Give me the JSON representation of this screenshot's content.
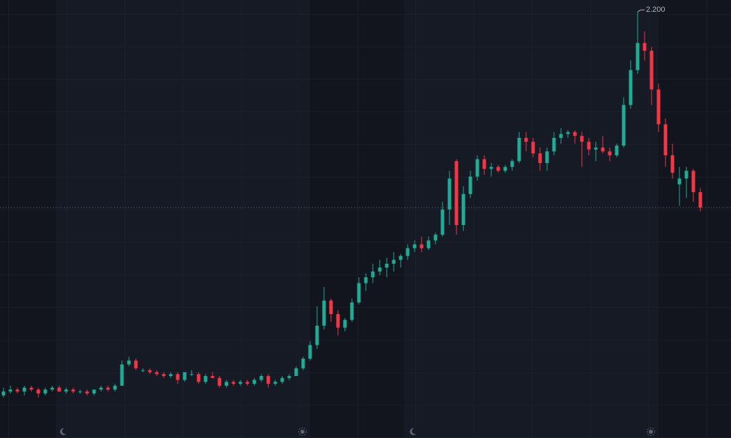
{
  "chart_data": {
    "type": "candlestick",
    "ylim": [
      0,
      2.262
    ],
    "up_color": "#22ab94",
    "down_color": "#f23645",
    "annotation": {
      "value": 2.2,
      "label": "2.200"
    },
    "open": [
      0.22,
      0.24,
      0.25,
      0.24,
      0.26,
      0.25,
      0.23,
      0.25,
      0.26,
      0.24,
      0.25,
      0.24,
      0.24,
      0.23,
      0.25,
      0.26,
      0.25,
      0.27,
      0.38,
      0.4,
      0.35,
      0.35,
      0.34,
      0.33,
      0.32,
      0.33,
      0.3,
      0.33,
      0.33,
      0.29,
      0.32,
      0.31,
      0.27,
      0.29,
      0.28,
      0.29,
      0.28,
      0.3,
      0.32,
      0.28,
      0.29,
      0.31,
      0.32,
      0.36,
      0.41,
      0.48,
      0.58,
      0.71,
      0.64,
      0.57,
      0.61,
      0.7,
      0.8,
      0.83,
      0.86,
      0.88,
      0.9,
      0.92,
      0.94,
      0.98,
      1.0,
      0.98,
      1.02,
      1.05,
      1.18,
      1.43,
      1.1,
      1.26,
      1.35,
      1.44,
      1.39,
      1.4,
      1.38,
      1.4,
      1.43,
      1.55,
      1.53,
      1.47,
      1.42,
      1.48,
      1.55,
      1.57,
      1.58,
      1.56,
      1.53,
      1.49,
      1.5,
      1.48,
      1.46,
      1.51,
      1.72,
      1.9,
      2.04,
      2.0,
      1.8,
      1.62,
      1.46,
      1.31,
      1.34,
      1.38,
      1.27
    ],
    "high": [
      0.26,
      0.27,
      0.26,
      0.27,
      0.27,
      0.26,
      0.26,
      0.27,
      0.27,
      0.26,
      0.26,
      0.25,
      0.25,
      0.25,
      0.27,
      0.27,
      0.28,
      0.4,
      0.42,
      0.41,
      0.36,
      0.36,
      0.35,
      0.34,
      0.34,
      0.34,
      0.34,
      0.35,
      0.34,
      0.33,
      0.34,
      0.32,
      0.3,
      0.3,
      0.3,
      0.3,
      0.31,
      0.33,
      0.33,
      0.3,
      0.32,
      0.33,
      0.37,
      0.42,
      0.5,
      0.68,
      0.78,
      0.72,
      0.66,
      0.62,
      0.72,
      0.83,
      0.85,
      0.9,
      0.92,
      0.93,
      0.96,
      0.95,
      1.0,
      1.02,
      1.04,
      1.04,
      1.06,
      1.22,
      1.38,
      1.44,
      1.3,
      1.38,
      1.46,
      1.46,
      1.42,
      1.41,
      1.41,
      1.44,
      1.58,
      1.58,
      1.55,
      1.5,
      1.5,
      1.58,
      1.6,
      1.59,
      1.59,
      1.58,
      1.55,
      1.53,
      1.56,
      1.5,
      1.52,
      1.76,
      1.95,
      2.2,
      2.1,
      2.02,
      1.83,
      1.65,
      1.52,
      1.4,
      1.4,
      1.39,
      1.29
    ],
    "low": [
      0.21,
      0.23,
      0.23,
      0.22,
      0.24,
      0.21,
      0.22,
      0.24,
      0.24,
      0.23,
      0.23,
      0.23,
      0.22,
      0.22,
      0.24,
      0.24,
      0.24,
      0.27,
      0.37,
      0.35,
      0.34,
      0.33,
      0.32,
      0.31,
      0.31,
      0.28,
      0.29,
      0.32,
      0.28,
      0.28,
      0.31,
      0.26,
      0.26,
      0.27,
      0.27,
      0.27,
      0.27,
      0.29,
      0.26,
      0.27,
      0.28,
      0.3,
      0.32,
      0.35,
      0.4,
      0.46,
      0.56,
      0.6,
      0.53,
      0.55,
      0.6,
      0.69,
      0.76,
      0.8,
      0.84,
      0.83,
      0.86,
      0.88,
      0.92,
      0.96,
      0.96,
      0.97,
      1.0,
      1.04,
      1.1,
      1.05,
      1.07,
      1.24,
      1.33,
      1.36,
      1.35,
      1.37,
      1.37,
      1.38,
      1.42,
      1.48,
      1.45,
      1.38,
      1.38,
      1.46,
      1.52,
      1.55,
      1.52,
      1.4,
      1.46,
      1.43,
      1.47,
      1.43,
      1.45,
      1.5,
      1.7,
      1.88,
      1.95,
      1.72,
      1.58,
      1.4,
      1.34,
      1.2,
      1.24,
      1.22,
      1.17
    ],
    "close": [
      0.24,
      0.25,
      0.24,
      0.26,
      0.25,
      0.23,
      0.25,
      0.26,
      0.24,
      0.25,
      0.24,
      0.24,
      0.23,
      0.25,
      0.26,
      0.25,
      0.27,
      0.38,
      0.4,
      0.36,
      0.35,
      0.34,
      0.33,
      0.32,
      0.33,
      0.3,
      0.34,
      0.33,
      0.29,
      0.32,
      0.31,
      0.27,
      0.29,
      0.28,
      0.29,
      0.28,
      0.3,
      0.32,
      0.28,
      0.29,
      0.31,
      0.32,
      0.36,
      0.41,
      0.48,
      0.58,
      0.71,
      0.64,
      0.57,
      0.61,
      0.7,
      0.8,
      0.83,
      0.86,
      0.88,
      0.9,
      0.92,
      0.94,
      0.98,
      1.0,
      0.98,
      1.02,
      1.05,
      1.18,
      1.34,
      1.1,
      1.26,
      1.35,
      1.44,
      1.39,
      1.4,
      1.38,
      1.4,
      1.43,
      1.55,
      1.53,
      1.47,
      1.42,
      1.48,
      1.55,
      1.57,
      1.58,
      1.56,
      1.53,
      1.49,
      1.5,
      1.48,
      1.46,
      1.51,
      1.72,
      1.9,
      2.04,
      2.0,
      1.8,
      1.62,
      1.46,
      1.37,
      1.34,
      1.38,
      1.27,
      1.19
    ]
  }
}
